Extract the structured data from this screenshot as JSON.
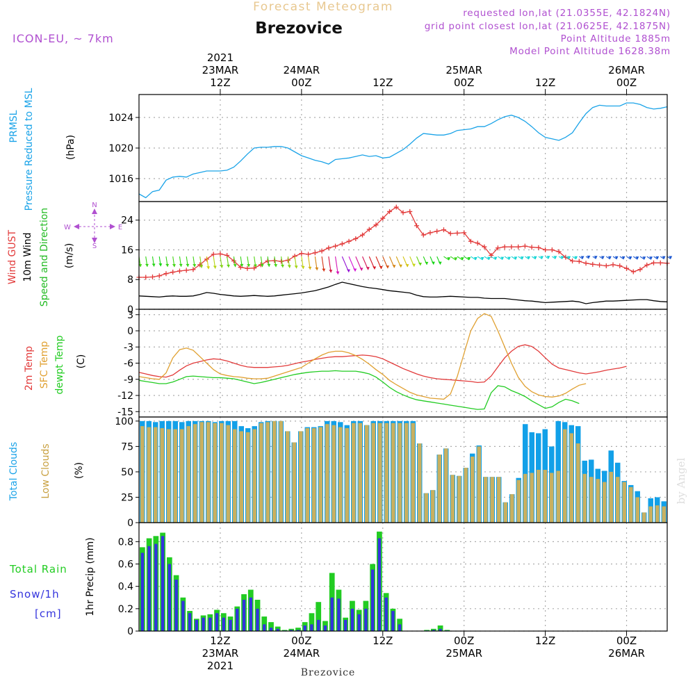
{
  "header": {
    "chart_title": "Forecast Meteogram",
    "location": "Brezovice",
    "model": "ICON-EU, ~ 7km",
    "requested": "requested lon,lat (21.0355E, 42.1824N)",
    "grid_point": "grid point closest lon,lat (21.0625E, 42.1875N)",
    "point_altitude": "Point Altitude 1885m",
    "model_altitude": "Model Point Altitude 1628.38m",
    "footer_location": "Brezovice",
    "watermark": "by Angel"
  },
  "time_axis": {
    "hours_start": 0,
    "hours_end": 78,
    "top_labels": [
      {
        "hour": 12,
        "lines": [
          "2021",
          "23MAR",
          "12Z"
        ]
      },
      {
        "hour": 24,
        "lines": [
          "24MAR",
          "00Z"
        ]
      },
      {
        "hour": 36,
        "lines": [
          "12Z"
        ]
      },
      {
        "hour": 48,
        "lines": [
          "25MAR",
          "00Z"
        ]
      },
      {
        "hour": 60,
        "lines": [
          "12Z"
        ]
      },
      {
        "hour": 72,
        "lines": [
          "26MAR",
          "00Z"
        ]
      }
    ],
    "bottom_labels": [
      {
        "hour": 12,
        "lines": [
          "12Z",
          "23MAR",
          "2021"
        ]
      },
      {
        "hour": 24,
        "lines": [
          "00Z",
          "24MAR"
        ]
      },
      {
        "hour": 36,
        "lines": [
          "12Z"
        ]
      },
      {
        "hour": 48,
        "lines": [
          "00Z",
          "25MAR"
        ]
      },
      {
        "hour": 60,
        "lines": [
          "12Z"
        ]
      },
      {
        "hour": 72,
        "lines": [
          "00Z",
          "26MAR"
        ]
      }
    ]
  },
  "legend_colors": {
    "pressure": "#1aa3e8",
    "gust": "#e23a3a",
    "wind": "#000000",
    "direction": "#22bb22",
    "t2m": "#e23a3a",
    "tsfc": "#e0a030",
    "dewpt": "#22cc22",
    "total_clouds": "#12a0e8",
    "low_clouds": "#c8b060",
    "rain": "#22cc22",
    "snow": "#3333dd",
    "compass": "#b050d0",
    "header_purple": "#b050d0",
    "title_orange": "#e8c890"
  },
  "chart_data": [
    {
      "type": "line",
      "panel": "pressure",
      "y_labels": [
        "PRMSL",
        "Pressure Reduced to MSL"
      ],
      "unit": "(hPa)",
      "ylim": [
        1013,
        1027
      ],
      "yticks": [
        1016,
        1020,
        1024
      ],
      "grid": true,
      "series": [
        {
          "values": [
            1014.0,
            1013.5,
            1014.3,
            1014.5,
            1015.8,
            1016.2,
            1016.3,
            1016.2,
            1016.6,
            1016.8,
            1017.0,
            1017.0,
            1017.0,
            1017.1,
            1017.5,
            1018.3,
            1019.2,
            1020.0,
            1020.1,
            1020.1,
            1020.2,
            1020.2,
            1020.0,
            1019.5,
            1019.0,
            1018.7,
            1018.4,
            1018.2,
            1017.9,
            1018.5,
            1018.6,
            1018.7,
            1018.9,
            1019.1,
            1018.9,
            1019.0,
            1018.7,
            1018.8,
            1019.3,
            1019.8,
            1020.5,
            1021.3,
            1021.9,
            1021.8,
            1021.7,
            1021.7,
            1021.9,
            1022.3,
            1022.4,
            1022.5,
            1022.8,
            1022.8,
            1023.2,
            1023.7,
            1024.1,
            1024.3,
            1024.0,
            1023.5,
            1022.8,
            1022.0,
            1021.4,
            1021.2,
            1021.0,
            1021.4,
            1022.0,
            1023.3,
            1024.5,
            1025.3,
            1025.6,
            1025.5,
            1025.5,
            1025.5,
            1025.9,
            1025.9,
            1025.7,
            1025.3,
            1025.1,
            1025.2,
            1025.4
          ]
        }
      ]
    },
    {
      "type": "line",
      "panel": "wind",
      "y_labels": [
        "Wind GUST",
        "10m Wind",
        "Speed and Direction"
      ],
      "unit": "(m/s)",
      "ylim": [
        0,
        29
      ],
      "yticks": [
        0,
        8,
        16,
        24
      ],
      "grid": true,
      "compass": {
        "n": "N",
        "s": "S",
        "w": "W",
        "e": "E"
      },
      "series": [
        {
          "name": "Wind GUST",
          "values": [
            8.6,
            8.6,
            8.7,
            9.0,
            9.6,
            10.0,
            10.3,
            10.5,
            10.7,
            12.0,
            13.5,
            14.8,
            14.9,
            14.5,
            13.0,
            11.3,
            11.0,
            11.1,
            12.0,
            13.0,
            13.1,
            12.9,
            13.2,
            14.3,
            15.0,
            14.8,
            15.2,
            15.7,
            16.5,
            17.0,
            17.6,
            18.3,
            19.0,
            20.0,
            21.5,
            22.7,
            24.5,
            26.3,
            27.5,
            26.0,
            26.3,
            22.5,
            20.0,
            20.6,
            21.0,
            21.4,
            20.4,
            20.5,
            20.6,
            18.3,
            17.8,
            16.8,
            14.5,
            16.5,
            16.8,
            16.8,
            16.8,
            17.0,
            16.7,
            16.6,
            16.0,
            16.0,
            15.5,
            14.0,
            13.0,
            12.9,
            12.4,
            12.1,
            11.9,
            11.7,
            12.0,
            11.7,
            11.0,
            10.1,
            10.7,
            11.9,
            12.5,
            12.5,
            12.4
          ]
        },
        {
          "name": "10m Wind",
          "values": [
            3.6,
            3.5,
            3.4,
            3.3,
            3.5,
            3.6,
            3.5,
            3.5,
            3.6,
            4.0,
            4.5,
            4.3,
            4.0,
            3.8,
            3.6,
            3.5,
            3.6,
            3.7,
            3.6,
            3.5,
            3.6,
            3.8,
            4.0,
            4.2,
            4.4,
            4.7,
            5.0,
            5.5,
            6.0,
            6.7,
            7.3,
            6.9,
            6.5,
            6.1,
            5.8,
            5.6,
            5.3,
            5.0,
            4.8,
            4.6,
            4.4,
            3.8,
            3.4,
            3.3,
            3.3,
            3.4,
            3.5,
            3.4,
            3.3,
            3.2,
            3.2,
            3.0,
            2.9,
            2.9,
            2.9,
            2.7,
            2.5,
            2.3,
            2.2,
            2.0,
            1.8,
            1.9,
            2.0,
            2.1,
            2.2,
            2.0,
            1.5,
            1.8,
            2.0,
            2.2,
            2.2,
            2.3,
            2.4,
            2.5,
            2.6,
            2.6,
            2.3,
            2.1,
            2.0
          ]
        }
      ]
    },
    {
      "type": "line",
      "panel": "temperature",
      "y_labels": [
        "2m Temp",
        "SFC Temp",
        "dewpt Temp"
      ],
      "unit": "(C)",
      "ylim": [
        -16,
        4
      ],
      "yticks": [
        -15,
        -12,
        -9,
        -6,
        -3,
        0,
        3
      ],
      "grid": true,
      "series": [
        {
          "name": "2m Temp",
          "values": [
            -7.7,
            -8.0,
            -8.3,
            -8.5,
            -8.6,
            -8.2,
            -7.3,
            -6.5,
            -6.0,
            -5.7,
            -5.4,
            -5.2,
            -5.3,
            -5.6,
            -6.0,
            -6.4,
            -6.7,
            -6.8,
            -6.8,
            -6.8,
            -6.7,
            -6.6,
            -6.4,
            -6.1,
            -5.8,
            -5.6,
            -5.3,
            -5.1,
            -4.9,
            -4.8,
            -4.8,
            -4.7,
            -4.6,
            -4.5,
            -4.6,
            -4.8,
            -5.2,
            -5.8,
            -6.4,
            -7.0,
            -7.5,
            -8.0,
            -8.4,
            -8.7,
            -8.9,
            -9.0,
            -9.1,
            -9.2,
            -9.3,
            -9.4,
            -9.6,
            -9.5,
            -8.4,
            -6.7,
            -5.0,
            -3.8,
            -2.9,
            -2.6,
            -2.9,
            -3.8,
            -5.0,
            -6.2,
            -6.9,
            -7.2,
            -7.5,
            -7.8,
            -8.0,
            -7.8,
            -7.6,
            -7.3,
            -7.1,
            -6.9,
            -6.6
          ]
        },
        {
          "name": "SFC Temp",
          "values": [
            -8.5,
            -8.7,
            -8.9,
            -9.0,
            -7.8,
            -5.0,
            -3.5,
            -3.2,
            -3.6,
            -4.8,
            -6.0,
            -7.2,
            -8.0,
            -8.3,
            -8.5,
            -8.6,
            -8.8,
            -8.9,
            -8.9,
            -8.8,
            -8.4,
            -8.0,
            -7.6,
            -7.2,
            -6.8,
            -6.0,
            -5.2,
            -4.5,
            -4.0,
            -3.8,
            -3.8,
            -4.1,
            -4.6,
            -5.3,
            -6.2,
            -7.2,
            -8.1,
            -9.2,
            -10.0,
            -10.7,
            -11.4,
            -11.9,
            -12.2,
            -12.5,
            -12.6,
            -12.7,
            -11.7,
            -8.5,
            -4.2,
            0.0,
            2.3,
            3.2,
            2.7,
            0.0,
            -3.0,
            -6.0,
            -8.6,
            -10.3,
            -11.3,
            -11.9,
            -12.2,
            -12.3,
            -12.1,
            -11.6,
            -10.8,
            -10.1,
            -9.8
          ]
        },
        {
          "name": "dewpt Temp",
          "values": [
            -9.2,
            -9.4,
            -9.6,
            -9.8,
            -9.8,
            -9.5,
            -9.0,
            -8.5,
            -8.4,
            -8.5,
            -8.6,
            -8.7,
            -8.7,
            -8.8,
            -8.9,
            -9.2,
            -9.5,
            -9.8,
            -9.6,
            -9.3,
            -9.0,
            -8.7,
            -8.4,
            -8.1,
            -7.9,
            -7.7,
            -7.6,
            -7.5,
            -7.5,
            -7.4,
            -7.5,
            -7.5,
            -7.5,
            -7.7,
            -8.0,
            -8.6,
            -9.5,
            -10.5,
            -11.3,
            -11.9,
            -12.4,
            -12.8,
            -13.0,
            -13.2,
            -13.4,
            -13.6,
            -13.8,
            -14.0,
            -14.2,
            -14.4,
            -14.6,
            -14.5,
            -11.5,
            -10.2,
            -10.4,
            -11.1,
            -11.6,
            -12.2,
            -13.0,
            -13.7,
            -14.4,
            -14.1,
            -13.3,
            -12.7,
            -13.0,
            -13.5
          ]
        }
      ]
    },
    {
      "type": "bar",
      "panel": "clouds",
      "y_labels": [
        "Total Clouds",
        "Low Clouds"
      ],
      "unit": "(%)",
      "ylim": [
        0,
        104
      ],
      "yticks": [
        0,
        25,
        50,
        75,
        100
      ],
      "grid": true,
      "series": [
        {
          "name": "Total Clouds",
          "values": [
            100,
            100,
            99,
            100,
            100,
            100,
            99,
            100,
            100,
            100,
            100,
            99,
            100,
            100,
            100,
            95,
            93,
            95,
            99,
            100,
            100,
            100,
            90,
            79,
            90,
            94,
            94,
            95,
            100,
            100,
            99,
            96,
            100,
            100,
            96,
            100,
            100,
            100,
            100,
            100,
            100,
            100,
            78,
            29,
            32,
            67,
            73,
            47,
            46,
            54,
            68,
            76,
            45,
            45,
            45,
            20,
            28,
            44,
            97,
            89,
            88,
            92,
            75,
            100,
            99,
            96,
            95,
            61,
            62,
            53,
            51,
            71,
            59,
            41,
            37,
            31,
            10,
            24,
            25,
            21
          ]
        },
        {
          "name": "Low Clouds",
          "values": [
            95,
            94,
            94,
            93,
            92,
            92,
            92,
            95,
            97,
            99,
            99,
            98,
            98,
            96,
            92,
            90,
            89,
            92,
            98,
            99,
            100,
            100,
            90,
            79,
            90,
            93,
            93,
            94,
            97,
            96,
            94,
            93,
            98,
            98,
            96,
            98,
            98,
            98,
            98,
            98,
            98,
            98,
            78,
            29,
            32,
            67,
            73,
            47,
            46,
            54,
            65,
            75,
            45,
            45,
            45,
            20,
            28,
            42,
            48,
            49,
            52,
            52,
            49,
            51,
            92,
            88,
            78,
            48,
            45,
            43,
            40,
            50,
            45,
            40,
            35,
            25,
            10,
            16,
            17,
            16
          ]
        }
      ]
    },
    {
      "type": "bar",
      "panel": "precip",
      "y_labels": [
        "Total Rain",
        "Snow/1h",
        "[cm]"
      ],
      "unit": "1hr Precip (mm)",
      "ylim": [
        0,
        0.97
      ],
      "yticks": [
        0,
        0.2,
        0.4,
        0.6,
        0.8
      ],
      "grid": true,
      "series": [
        {
          "name": "Total Rain",
          "values": [
            0.75,
            0.83,
            0.85,
            0.88,
            0.66,
            0.5,
            0.3,
            0.18,
            0.11,
            0.14,
            0.15,
            0.19,
            0.16,
            0.13,
            0.22,
            0.33,
            0.37,
            0.28,
            0.13,
            0.08,
            0.04,
            0.01,
            0.02,
            0.03,
            0.08,
            0.16,
            0.26,
            0.09,
            0.52,
            0.37,
            0.12,
            0.27,
            0.19,
            0.27,
            0.6,
            0.89,
            0.34,
            0.2,
            0.11,
            0.0,
            0.0,
            0.0,
            0.01,
            0.02,
            0.05,
            0.01,
            0.0,
            0.0,
            0.0,
            0.0,
            0.0,
            0.0,
            0.0,
            0.0,
            0.0,
            0.0,
            0.0,
            0.0,
            0.0,
            0.0,
            0.0,
            0.0,
            0.0,
            0.0,
            0.0,
            0.0,
            0.0,
            0.0,
            0.0,
            0.0,
            0.0,
            0.0,
            0.0,
            0.0,
            0.0,
            0.0,
            0.0,
            0.0
          ]
        },
        {
          "name": "Snow/1h",
          "values": [
            0.7,
            0.76,
            0.78,
            0.85,
            0.6,
            0.46,
            0.27,
            0.16,
            0.1,
            0.12,
            0.12,
            0.16,
            0.12,
            0.1,
            0.2,
            0.28,
            0.3,
            0.2,
            0.06,
            0.03,
            0.02,
            0.005,
            0.01,
            0.01,
            0.05,
            0.06,
            0.1,
            0.05,
            0.3,
            0.29,
            0.1,
            0.2,
            0.15,
            0.2,
            0.55,
            0.83,
            0.3,
            0.18,
            0.06,
            0.0,
            0.0,
            0.0,
            0.005,
            0.01,
            0.02,
            0.005,
            0.0,
            0.0,
            0.0,
            0.0,
            0.0,
            0.0,
            0.0,
            0.0,
            0.0,
            0.0,
            0.0,
            0.0,
            0.0,
            0.0,
            0.0,
            0.0,
            0.0,
            0.0,
            0.0,
            0.0,
            0.0,
            0.0,
            0.0,
            0.0,
            0.0,
            0.0,
            0.0,
            0.0,
            0.0,
            0.0,
            0.0,
            0.0
          ]
        }
      ]
    }
  ]
}
